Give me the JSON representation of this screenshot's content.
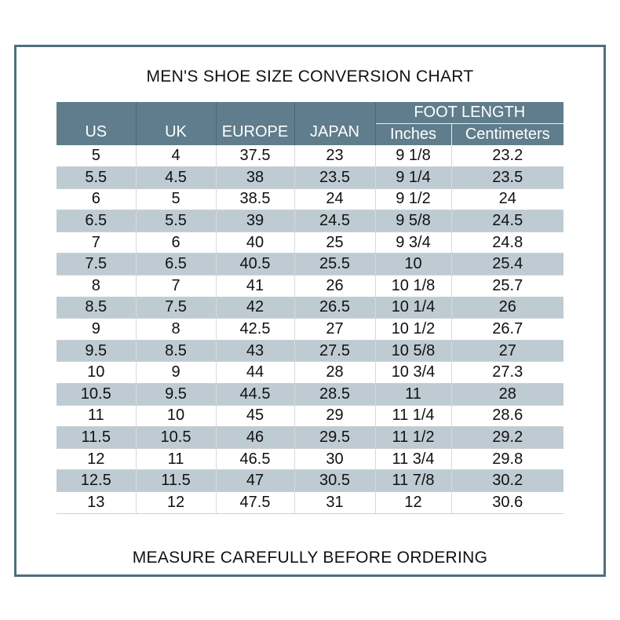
{
  "page": {
    "title": "MEN'S SHOE SIZE CONVERSION CHART",
    "footer_note": "MEASURE CAREFULLY BEFORE ORDERING"
  },
  "table": {
    "group_header": "FOOT LENGTH",
    "main_columns": [
      "US",
      "UK",
      "EUROPE",
      "JAPAN"
    ],
    "sub_columns": [
      "Inches",
      "Centimeters"
    ],
    "rows": [
      [
        "5",
        "4",
        "37.5",
        "23",
        "9 1/8",
        "23.2"
      ],
      [
        "5.5",
        "4.5",
        "38",
        "23.5",
        "9 1/4",
        "23.5"
      ],
      [
        "6",
        "5",
        "38.5",
        "24",
        "9 1/2",
        "24"
      ],
      [
        "6.5",
        "5.5",
        "39",
        "24.5",
        "9 5/8",
        "24.5"
      ],
      [
        "7",
        "6",
        "40",
        "25",
        "9 3/4",
        "24.8"
      ],
      [
        "7.5",
        "6.5",
        "40.5",
        "25.5",
        "10",
        "25.4"
      ],
      [
        "8",
        "7",
        "41",
        "26",
        "10 1/8",
        "25.7"
      ],
      [
        "8.5",
        "7.5",
        "42",
        "26.5",
        "10 1/4",
        "26"
      ],
      [
        "9",
        "8",
        "42.5",
        "27",
        "10 1/2",
        "26.7"
      ],
      [
        "9.5",
        "8.5",
        "43",
        "27.5",
        "10 5/8",
        "27"
      ],
      [
        "10",
        "9",
        "44",
        "28",
        "10 3/4",
        "27.3"
      ],
      [
        "10.5",
        "9.5",
        "44.5",
        "28.5",
        "11",
        "28"
      ],
      [
        "11",
        "10",
        "45",
        "29",
        "11 1/4",
        "28.6"
      ],
      [
        "11.5",
        "10.5",
        "46",
        "29.5",
        "11 1/2",
        "29.2"
      ],
      [
        "12",
        "11",
        "46.5",
        "30",
        "11 3/4",
        "29.8"
      ],
      [
        "12.5",
        "11.5",
        "47",
        "30.5",
        "11 7/8",
        "30.2"
      ],
      [
        "13",
        "12",
        "47.5",
        "31",
        "12",
        "30.6"
      ]
    ]
  },
  "colors": {
    "header_bg": "#5f7d8c",
    "alt_row_bg": "#bfcbd3",
    "frame_border": "#4f6e7d",
    "grid_line": "#d6d9db",
    "row_line": "#cbd1d5",
    "header_text": "#ffffff",
    "body_text": "#111111"
  },
  "chart_data": {
    "type": "table",
    "title": "MEN'S SHOE SIZE CONVERSION CHART",
    "columns": [
      "US",
      "UK",
      "EUROPE",
      "JAPAN",
      "FOOT LENGTH Inches",
      "FOOT LENGTH Centimeters"
    ],
    "rows": [
      [
        "5",
        "4",
        "37.5",
        "23",
        "9 1/8",
        "23.2"
      ],
      [
        "5.5",
        "4.5",
        "38",
        "23.5",
        "9 1/4",
        "23.5"
      ],
      [
        "6",
        "5",
        "38.5",
        "24",
        "9 1/2",
        "24"
      ],
      [
        "6.5",
        "5.5",
        "39",
        "24.5",
        "9 5/8",
        "24.5"
      ],
      [
        "7",
        "6",
        "40",
        "25",
        "9 3/4",
        "24.8"
      ],
      [
        "7.5",
        "6.5",
        "40.5",
        "25.5",
        "10",
        "25.4"
      ],
      [
        "8",
        "7",
        "41",
        "26",
        "10 1/8",
        "25.7"
      ],
      [
        "8.5",
        "7.5",
        "42",
        "26.5",
        "10 1/4",
        "26"
      ],
      [
        "9",
        "8",
        "42.5",
        "27",
        "10 1/2",
        "26.7"
      ],
      [
        "9.5",
        "8.5",
        "43",
        "27.5",
        "10 5/8",
        "27"
      ],
      [
        "10",
        "9",
        "44",
        "28",
        "10 3/4",
        "27.3"
      ],
      [
        "10.5",
        "9.5",
        "44.5",
        "28.5",
        "11",
        "28"
      ],
      [
        "11",
        "10",
        "45",
        "29",
        "11 1/4",
        "28.6"
      ],
      [
        "11.5",
        "10.5",
        "46",
        "29.5",
        "11 1/2",
        "29.2"
      ],
      [
        "12",
        "11",
        "46.5",
        "30",
        "11 3/4",
        "29.8"
      ],
      [
        "12.5",
        "11.5",
        "47",
        "30.5",
        "11 7/8",
        "30.2"
      ],
      [
        "13",
        "12",
        "47.5",
        "31",
        "12",
        "30.6"
      ]
    ],
    "note": "MEASURE CAREFULLY BEFORE ORDERING"
  }
}
